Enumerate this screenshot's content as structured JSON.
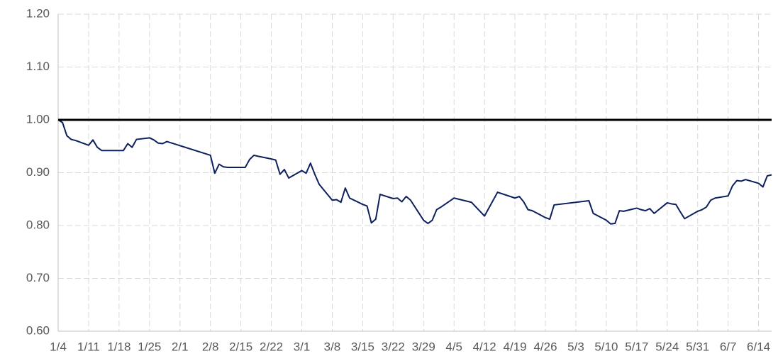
{
  "chart_data": {
    "type": "line",
    "x": [
      "1/4",
      "1/5",
      "1/6",
      "1/7",
      "1/8",
      "1/11",
      "1/12",
      "1/13",
      "1/14",
      "1/15",
      "1/19",
      "1/20",
      "1/21",
      "1/22",
      "1/25",
      "1/26",
      "1/27",
      "1/28",
      "1/29",
      "2/8",
      "2/9",
      "2/10",
      "2/11",
      "2/12",
      "2/16",
      "2/17",
      "2/18",
      "2/19",
      "2/22",
      "2/23",
      "2/24",
      "2/25",
      "2/26",
      "3/1",
      "3/2",
      "3/3",
      "3/4",
      "3/5",
      "3/8",
      "3/9",
      "3/10",
      "3/11",
      "3/12",
      "3/15",
      "3/16",
      "3/17",
      "3/18",
      "3/19",
      "3/22",
      "3/23",
      "3/24",
      "3/25",
      "3/26",
      "3/29",
      "3/30",
      "3/31",
      "4/1",
      "4/2",
      "4/5",
      "4/9",
      "4/12",
      "4/15",
      "4/19",
      "4/20",
      "4/21",
      "4/22",
      "4/23",
      "4/26",
      "4/27",
      "4/28",
      "5/6",
      "5/7",
      "5/10",
      "5/11",
      "5/12",
      "5/13",
      "5/14",
      "5/17",
      "5/18",
      "5/19",
      "5/20",
      "5/21",
      "5/24",
      "5/25",
      "5/26",
      "5/27",
      "5/28",
      "5/31",
      "6/1",
      "6/2",
      "6/3",
      "6/4",
      "6/7",
      "6/8",
      "6/9",
      "6/10",
      "6/11",
      "6/14",
      "6/15",
      "6/16",
      "6/17"
    ],
    "series": [
      {
        "color": "#0d1f5c",
        "values": [
          1.0,
          0.995,
          0.97,
          0.963,
          0.961,
          0.952,
          0.962,
          0.948,
          0.942,
          0.942,
          0.942,
          0.955,
          0.948,
          0.963,
          0.966,
          0.962,
          0.956,
          0.955,
          0.959,
          0.933,
          0.899,
          0.916,
          0.911,
          0.91,
          0.91,
          0.925,
          0.933,
          0.931,
          0.926,
          0.924,
          0.897,
          0.906,
          0.89,
          0.904,
          0.899,
          0.918,
          0.897,
          0.878,
          0.848,
          0.849,
          0.844,
          0.871,
          0.852,
          0.84,
          0.837,
          0.805,
          0.812,
          0.859,
          0.851,
          0.852,
          0.845,
          0.855,
          0.848,
          0.81,
          0.804,
          0.81,
          0.83,
          0.835,
          0.852,
          0.844,
          0.818,
          0.863,
          0.852,
          0.855,
          0.845,
          0.83,
          0.828,
          0.815,
          0.812,
          0.839,
          0.847,
          0.823,
          0.81,
          0.803,
          0.804,
          0.828,
          0.827,
          0.833,
          0.83,
          0.828,
          0.832,
          0.823,
          0.843,
          0.841,
          0.84,
          0.826,
          0.813,
          0.827,
          0.83,
          0.835,
          0.848,
          0.852,
          0.856,
          0.875,
          0.885,
          0.884,
          0.887,
          0.88,
          0.873,
          0.894,
          0.896
        ]
      },
      {
        "color": "#000000",
        "x": [
          "1/4",
          "6/17"
        ],
        "values": [
          1.0,
          1.0
        ]
      }
    ],
    "xlim": [
      "1/4",
      "6/17"
    ],
    "xticks": [
      "1/4",
      "1/11",
      "1/18",
      "1/25",
      "2/1",
      "2/8",
      "2/15",
      "2/22",
      "3/1",
      "3/8",
      "3/15",
      "3/22",
      "3/29",
      "4/5",
      "4/12",
      "4/19",
      "4/26",
      "5/3",
      "5/10",
      "5/17",
      "5/24",
      "5/31",
      "6/7",
      "6/14"
    ],
    "ylim": [
      0.6,
      1.2
    ],
    "yticks": [
      {
        "value": 0.6,
        "label": "0.60"
      },
      {
        "value": 0.7,
        "label": "0.70"
      },
      {
        "value": 0.8,
        "label": "0.80"
      },
      {
        "value": 0.9,
        "label": "0.90"
      },
      {
        "value": 1.0,
        "label": "1.00"
      },
      {
        "value": 1.1,
        "label": "1.10"
      },
      {
        "value": 1.2,
        "label": "1.20"
      }
    ],
    "grid": true
  }
}
